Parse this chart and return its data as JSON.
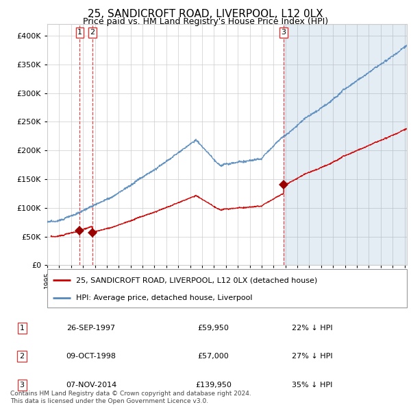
{
  "title": "25, SANDICROFT ROAD, LIVERPOOL, L12 0LX",
  "subtitle": "Price paid vs. HM Land Registry's House Price Index (HPI)",
  "hpi_color": "#5588bb",
  "price_color": "#cc0000",
  "vline_color": "#dd3333",
  "marker_color": "#990000",
  "bg_color": "#ffffff",
  "grid_color": "#cccccc",
  "shade_color": "#ddeeff",
  "legend_label_price": "25, SANDICROFT ROAD, LIVERPOOL, L12 0LX (detached house)",
  "legend_label_hpi": "HPI: Average price, detached house, Liverpool",
  "transactions": [
    {
      "num": 1,
      "date_label": "26-SEP-1997",
      "price": 59950,
      "pct": "22% ↓ HPI",
      "year": 1997.73
    },
    {
      "num": 2,
      "date_label": "09-OCT-1998",
      "price": 57000,
      "pct": "27% ↓ HPI",
      "year": 1998.77
    },
    {
      "num": 3,
      "date_label": "07-NOV-2014",
      "price": 139950,
      "pct": "35% ↓ HPI",
      "year": 2014.85
    }
  ],
  "footer": "Contains HM Land Registry data © Crown copyright and database right 2024.\nThis data is licensed under the Open Government Licence v3.0.",
  "ylim": [
    0,
    420000
  ],
  "xlim_start": 1995.3,
  "xlim_end": 2025.2
}
